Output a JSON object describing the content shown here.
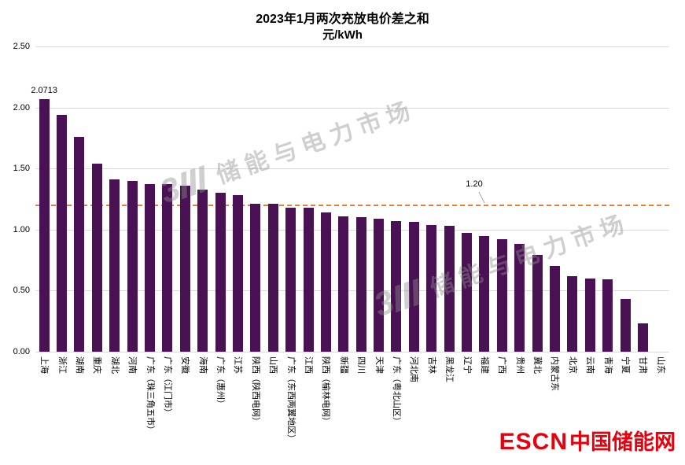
{
  "watermark": {
    "text": "储能与电力市场"
  },
  "footer_logo": {
    "escn": "ESCN",
    "cn": "中国储能网"
  },
  "chart_data": {
    "type": "bar",
    "title": "2023年1月两次充放电价差之和",
    "unit": "元/kWh",
    "categories": [
      "上海",
      "浙江",
      "湖南",
      "重庆",
      "湖北",
      "河南",
      "广东（珠三角五市）",
      "广东（江门市）",
      "安徽",
      "海南",
      "广东（惠州）",
      "江苏",
      "陕西（陕西电网）",
      "山西",
      "广东（东西两翼地区）",
      "江西",
      "陕西（榆林电网）",
      "新疆",
      "四川",
      "天津",
      "广东（粤北山区）",
      "河北南",
      "吉林",
      "黑龙江",
      "辽宁",
      "福建",
      "广西",
      "贵州",
      "冀北",
      "内蒙古东",
      "北京",
      "云南",
      "青海",
      "宁夏",
      "甘肃",
      "山东"
    ],
    "values": [
      2.0713,
      1.94,
      1.76,
      1.54,
      1.41,
      1.4,
      1.37,
      1.37,
      1.36,
      1.33,
      1.3,
      1.28,
      1.21,
      1.21,
      1.18,
      1.18,
      1.14,
      1.11,
      1.1,
      1.09,
      1.07,
      1.06,
      1.04,
      1.03,
      0.97,
      0.95,
      0.92,
      0.88,
      0.79,
      0.7,
      0.62,
      0.6,
      0.59,
      0.43,
      0.23,
      0
    ],
    "bar_color": "#4A1254",
    "ylim": [
      0,
      2.5
    ],
    "yticks": [
      "0.00",
      "0.50",
      "1.00",
      "1.50",
      "2.00",
      "2.50"
    ],
    "grid": true,
    "legend": "none",
    "reference_line": {
      "value": 1.2,
      "label": "1.20",
      "color": "#ED7D31",
      "style": "dashed"
    },
    "data_labels": [
      {
        "index": 0,
        "text": "2.0713"
      }
    ]
  }
}
